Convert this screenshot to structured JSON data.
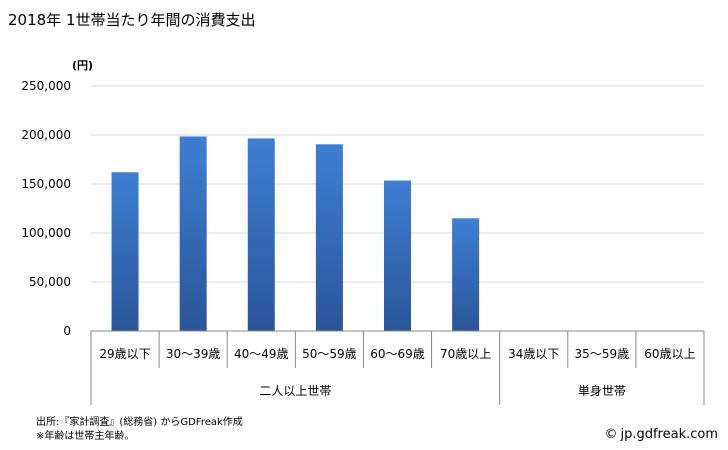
{
  "title": "2018年 1世帯当たり年間の消費支出",
  "footer": {
    "source": "出所:『家計調査』(総務省) からGDFreak作成",
    "note": "※年齢は世帯主年齢。",
    "credit": "jp.gdfreak.com",
    "credit_icon": "copyright-icon"
  },
  "colors": {
    "bar_top": "#3d7fd3",
    "bar_bottom": "#2a5599",
    "grid": "#d9d9d9",
    "axis": "#888888"
  },
  "chart_data": {
    "type": "bar",
    "title": "2018年 1世帯当たり年間の消費支出",
    "ylabel": "(円)",
    "ylim": [
      0,
      250000
    ],
    "yticks": [
      0,
      50000,
      100000,
      150000,
      200000,
      250000
    ],
    "ytick_labels": [
      "0",
      "50,000",
      "100,000",
      "150,000",
      "200,000",
      "250,000"
    ],
    "grid": true,
    "categories": [
      "29歳以下",
      "30～39歳",
      "40～49歳",
      "50～59歳",
      "60～69歳",
      "70歳以上",
      "34歳以下",
      "35～59歳",
      "60歳以上"
    ],
    "values": [
      162000,
      198500,
      196500,
      190500,
      153500,
      115000,
      null,
      null,
      null
    ],
    "groups": [
      {
        "label": "二人以上世帯",
        "start": 0,
        "count": 6
      },
      {
        "label": "単身世帯",
        "start": 6,
        "count": 3
      }
    ]
  }
}
